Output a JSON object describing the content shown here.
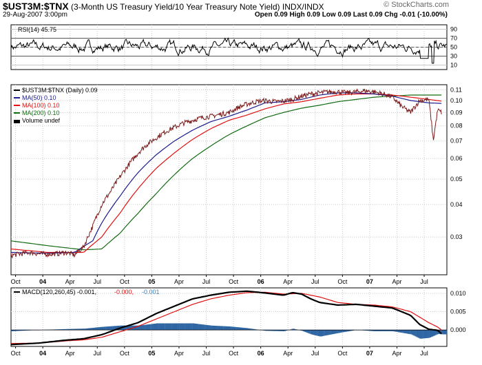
{
  "header": {
    "symbol": "$UST3M:$TNX",
    "description": "(3-Month US Treasury Yield/10 Year Treasury Note Yield)",
    "exchange": "INDX/INDX",
    "date": "29-Aug-2007 3:00pm",
    "quote": "Open 0.09  High 0.09  Low 0.09  Last 0.09  Chg -0.01 (-10.00%)",
    "logo": "© StockCharts.com"
  },
  "colors": {
    "price": "#000000",
    "ma50": "#1a1a8c",
    "ma100": "#e01010",
    "ma200": "#106a10",
    "rsi": "#000000",
    "rsi_fill": "#556655",
    "macd": "#000000",
    "signal": "#e01010",
    "hist": "#2f66a3",
    "grid": "#c8c8c8"
  },
  "chart_data": [
    {
      "type": "line",
      "name": "rsi-panel",
      "legend": "RSI(14) 45.75",
      "ylim": [
        0,
        100
      ],
      "yticks": [
        10,
        30,
        50,
        70,
        90
      ],
      "reference_levels": [
        30,
        50,
        70
      ],
      "mean": 50,
      "amplitude": 14
    },
    {
      "type": "line",
      "name": "price-panel",
      "legend": {
        "price": "$UST3M:$TNX (Daily) 0.09",
        "ma50": "MA(50) 0.10",
        "ma100": "MA(100) 0.10",
        "ma200": "MA(200) 0.10",
        "volume": "Volume undef"
      },
      "yscale": "log",
      "ylim": [
        0.0215,
        0.115
      ],
      "yticks": [
        0.03,
        0.04,
        0.05,
        0.06,
        0.07,
        0.08,
        0.09,
        0.1,
        0.11
      ],
      "ytick_labels": [
        "0.03",
        "0.04",
        "0.05",
        "0.06",
        "0.07",
        "0.08",
        "0.09",
        "0.10",
        "0.11"
      ],
      "xlim": [
        0,
        48
      ],
      "price_anchors": [
        [
          0,
          0.0255
        ],
        [
          2,
          0.0262
        ],
        [
          3,
          0.0259
        ],
        [
          4,
          0.0258
        ],
        [
          5,
          0.0259
        ],
        [
          6,
          0.0262
        ],
        [
          7,
          0.0256
        ],
        [
          8,
          0.0275
        ],
        [
          9,
          0.033
        ],
        [
          10,
          0.04
        ],
        [
          11,
          0.045
        ],
        [
          12,
          0.051
        ],
        [
          13,
          0.057
        ],
        [
          14,
          0.063
        ],
        [
          15,
          0.068
        ],
        [
          16,
          0.072
        ],
        [
          17,
          0.076
        ],
        [
          18,
          0.079
        ],
        [
          19,
          0.082
        ],
        [
          20,
          0.084
        ],
        [
          21,
          0.086
        ],
        [
          22,
          0.087
        ],
        [
          23,
          0.0885
        ],
        [
          24,
          0.09
        ],
        [
          25,
          0.094
        ],
        [
          26,
          0.097
        ],
        [
          27,
          0.099
        ],
        [
          28,
          0.1
        ],
        [
          29,
          0.099
        ],
        [
          30,
          0.0995
        ],
        [
          31,
          0.101
        ],
        [
          32,
          0.104
        ],
        [
          33,
          0.106
        ],
        [
          34,
          0.107
        ],
        [
          35,
          0.108
        ],
        [
          36,
          0.108
        ],
        [
          37,
          0.107
        ],
        [
          38,
          0.108
        ],
        [
          39,
          0.109
        ],
        [
          40,
          0.108
        ],
        [
          41,
          0.106
        ],
        [
          42,
          0.103
        ],
        [
          43,
          0.095
        ],
        [
          44,
          0.09
        ],
        [
          45,
          0.1
        ],
        [
          46,
          0.101
        ],
        [
          46.5,
          0.07
        ],
        [
          47,
          0.092
        ],
        [
          47.4,
          0.09
        ]
      ],
      "ma50_anchors": [
        [
          0,
          0.0262
        ],
        [
          4,
          0.026
        ],
        [
          7,
          0.0262
        ],
        [
          9,
          0.029
        ],
        [
          10,
          0.034
        ],
        [
          12,
          0.043
        ],
        [
          14,
          0.053
        ],
        [
          16,
          0.062
        ],
        [
          18,
          0.07
        ],
        [
          20,
          0.077
        ],
        [
          22,
          0.083
        ],
        [
          24,
          0.087
        ],
        [
          26,
          0.092
        ],
        [
          28,
          0.098
        ],
        [
          30,
          0.099
        ],
        [
          32,
          0.101
        ],
        [
          34,
          0.105
        ],
        [
          36,
          0.107
        ],
        [
          38,
          0.107
        ],
        [
          40,
          0.106
        ],
        [
          42,
          0.104
        ],
        [
          44,
          0.1
        ],
        [
          46,
          0.098
        ],
        [
          47.4,
          0.0975
        ]
      ],
      "ma100_anchors": [
        [
          0,
          0.027
        ],
        [
          4,
          0.0262
        ],
        [
          8,
          0.0262
        ],
        [
          10,
          0.03
        ],
        [
          12,
          0.037
        ],
        [
          14,
          0.046
        ],
        [
          16,
          0.055
        ],
        [
          18,
          0.063
        ],
        [
          20,
          0.071
        ],
        [
          22,
          0.078
        ],
        [
          24,
          0.084
        ],
        [
          26,
          0.088
        ],
        [
          28,
          0.093
        ],
        [
          30,
          0.097
        ],
        [
          32,
          0.099
        ],
        [
          34,
          0.102
        ],
        [
          36,
          0.105
        ],
        [
          38,
          0.106
        ],
        [
          40,
          0.106
        ],
        [
          42,
          0.105
        ],
        [
          44,
          0.103
        ],
        [
          46,
          0.101
        ],
        [
          47.4,
          0.0995
        ]
      ],
      "ma200_anchors": [
        [
          0,
          0.029
        ],
        [
          4,
          0.0278
        ],
        [
          8,
          0.0268
        ],
        [
          10,
          0.027
        ],
        [
          12,
          0.031
        ],
        [
          14,
          0.037
        ],
        [
          16,
          0.044
        ],
        [
          18,
          0.052
        ],
        [
          20,
          0.06
        ],
        [
          22,
          0.067
        ],
        [
          24,
          0.074
        ],
        [
          26,
          0.08
        ],
        [
          28,
          0.086
        ],
        [
          30,
          0.09
        ],
        [
          32,
          0.0935
        ],
        [
          34,
          0.096
        ],
        [
          36,
          0.099
        ],
        [
          38,
          0.101
        ],
        [
          40,
          0.103
        ],
        [
          42,
          0.104
        ],
        [
          44,
          0.105
        ],
        [
          46,
          0.105
        ],
        [
          47.4,
          0.105
        ]
      ]
    },
    {
      "type": "line",
      "name": "macd-panel",
      "legend": {
        "macd": "MACD(120,260,45) -0.001,",
        "signal": "-0.000,",
        "hist": "-0.001"
      },
      "ylim": [
        -0.0045,
        0.0115
      ],
      "yticks": [
        0.0,
        0.005,
        0.01
      ],
      "ytick_labels": [
        "0.000",
        "0.005",
        "0.010"
      ],
      "macd_anchors": [
        [
          0,
          -0.004
        ],
        [
          3,
          -0.0036
        ],
        [
          6,
          -0.0028
        ],
        [
          8,
          -0.0024
        ],
        [
          10,
          -0.0013
        ],
        [
          12,
          0.0005
        ],
        [
          14,
          0.002
        ],
        [
          16,
          0.0045
        ],
        [
          18,
          0.0065
        ],
        [
          20,
          0.0085
        ],
        [
          22,
          0.0095
        ],
        [
          24,
          0.0103
        ],
        [
          26,
          0.0106
        ],
        [
          28,
          0.0101
        ],
        [
          30,
          0.0095
        ],
        [
          31,
          0.0102
        ],
        [
          32,
          0.0098
        ],
        [
          33,
          0.0085
        ],
        [
          34,
          0.0075
        ],
        [
          36,
          0.0068
        ],
        [
          38,
          0.007
        ],
        [
          40,
          0.0065
        ],
        [
          42,
          0.006
        ],
        [
          44,
          0.004
        ],
        [
          45,
          0.0015
        ],
        [
          46,
          0.0002
        ],
        [
          47,
          -0.0001
        ],
        [
          47.4,
          -0.001
        ]
      ],
      "signal_anchors": [
        [
          0,
          -0.0037
        ],
        [
          3,
          -0.0036
        ],
        [
          6,
          -0.003
        ],
        [
          8,
          -0.0027
        ],
        [
          10,
          -0.002
        ],
        [
          12,
          -0.0005
        ],
        [
          14,
          0.001
        ],
        [
          16,
          0.003
        ],
        [
          18,
          0.005
        ],
        [
          20,
          0.007
        ],
        [
          22,
          0.0085
        ],
        [
          24,
          0.0095
        ],
        [
          26,
          0.0102
        ],
        [
          28,
          0.0103
        ],
        [
          30,
          0.0098
        ],
        [
          32,
          0.01
        ],
        [
          34,
          0.009
        ],
        [
          36,
          0.0075
        ],
        [
          38,
          0.007
        ],
        [
          40,
          0.0068
        ],
        [
          42,
          0.0063
        ],
        [
          44,
          0.005
        ],
        [
          45,
          0.0035
        ],
        [
          46,
          0.002
        ],
        [
          47,
          0.0008
        ],
        [
          47.4,
          0.0
        ]
      ]
    }
  ],
  "x_axis": {
    "labels": [
      {
        "m": 0.5,
        "t": "Oct",
        "year": false
      },
      {
        "m": 3.5,
        "t": "04",
        "year": true
      },
      {
        "m": 6.5,
        "t": "Apr",
        "year": false
      },
      {
        "m": 9.5,
        "t": "Jul",
        "year": false
      },
      {
        "m": 12.5,
        "t": "Oct",
        "year": false
      },
      {
        "m": 15.5,
        "t": "05",
        "year": true
      },
      {
        "m": 18.5,
        "t": "Apr",
        "year": false
      },
      {
        "m": 21.5,
        "t": "Jul",
        "year": false
      },
      {
        "m": 24.5,
        "t": "Oct",
        "year": false
      },
      {
        "m": 27.5,
        "t": "06",
        "year": true
      },
      {
        "m": 30.5,
        "t": "Apr",
        "year": false
      },
      {
        "m": 33.5,
        "t": "Jul",
        "year": false
      },
      {
        "m": 36.5,
        "t": "Oct",
        "year": false
      },
      {
        "m": 39.5,
        "t": "07",
        "year": true
      },
      {
        "m": 42.5,
        "t": "Apr",
        "year": false
      },
      {
        "m": 45.5,
        "t": "Jul",
        "year": false
      }
    ]
  }
}
